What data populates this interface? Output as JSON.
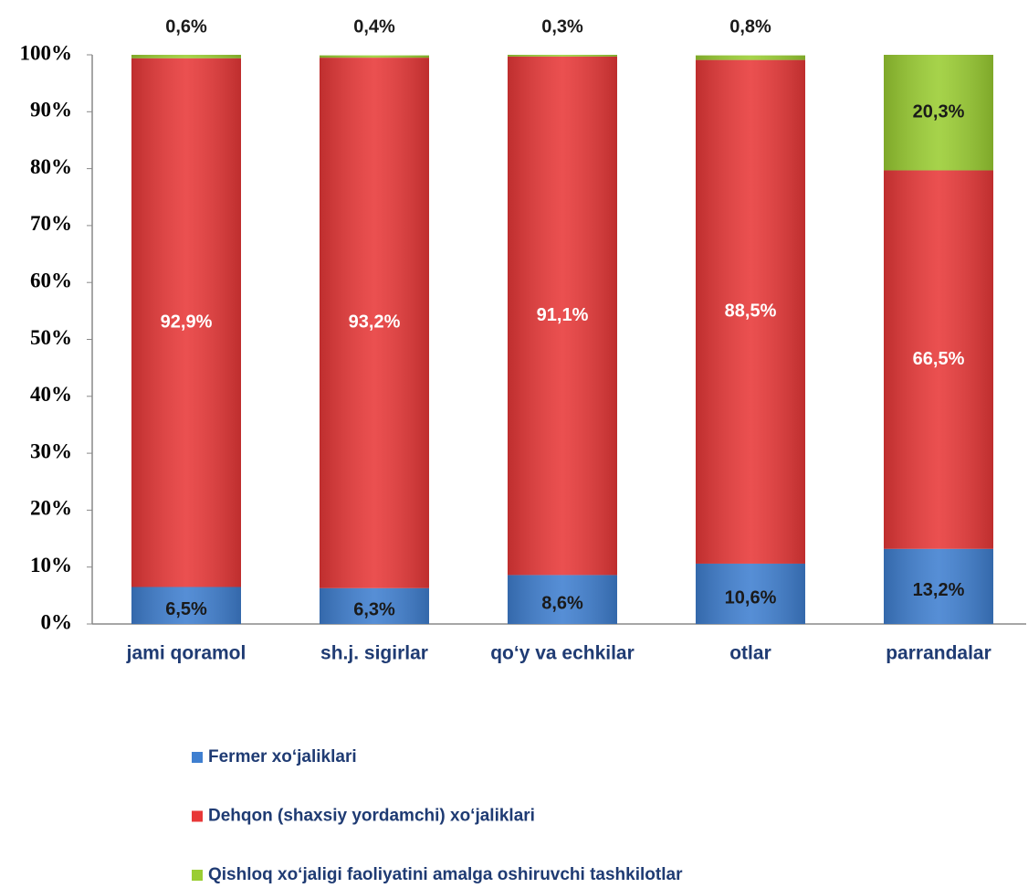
{
  "chart_data": {
    "type": "stacked_bar",
    "categories": [
      "jami qoramol",
      "sh.j. sigirlar",
      "qo‘y va echkilar",
      "otlar",
      "parrandalar"
    ],
    "series": [
      {
        "name": "Fermer xo‘jaliklari",
        "color": "#3f7fd0",
        "values": [
          6.5,
          6.3,
          8.6,
          10.6,
          13.2
        ],
        "value_labels": [
          "6,5%",
          "6,3%",
          "8,6%",
          "10,6%",
          "13,2%"
        ]
      },
      {
        "name": "Dehqon (shaxsiy yordamchi) xo‘jaliklari",
        "color": "#e83838",
        "values": [
          92.9,
          93.2,
          91.1,
          88.5,
          66.5
        ],
        "value_labels": [
          "92,9%",
          "93,2%",
          "91,1%",
          "88,5%",
          "66,5%"
        ]
      },
      {
        "name": "Qishloq xo‘jaligi faoliyatini amalga oshiruvchi tashkilotlar",
        "color": "#9acd32",
        "values": [
          0.6,
          0.4,
          0.3,
          0.8,
          20.3
        ],
        "value_labels": [
          "0,6%",
          "0,4%",
          "0,3%",
          "0,8%",
          "20,3%"
        ]
      }
    ],
    "ylim": [
      0,
      100
    ],
    "yticks": [
      {
        "value": 0,
        "label": "0%"
      },
      {
        "value": 10,
        "label": "10%"
      },
      {
        "value": 20,
        "label": "20%"
      },
      {
        "value": 30,
        "label": "30%"
      },
      {
        "value": 40,
        "label": "40%"
      },
      {
        "value": 50,
        "label": "50%"
      },
      {
        "value": 60,
        "label": "60%"
      },
      {
        "value": 70,
        "label": "70%"
      },
      {
        "value": 80,
        "label": "80%"
      },
      {
        "value": 90,
        "label": "90%"
      },
      {
        "value": 100,
        "label": "100%"
      }
    ],
    "grid": false
  }
}
